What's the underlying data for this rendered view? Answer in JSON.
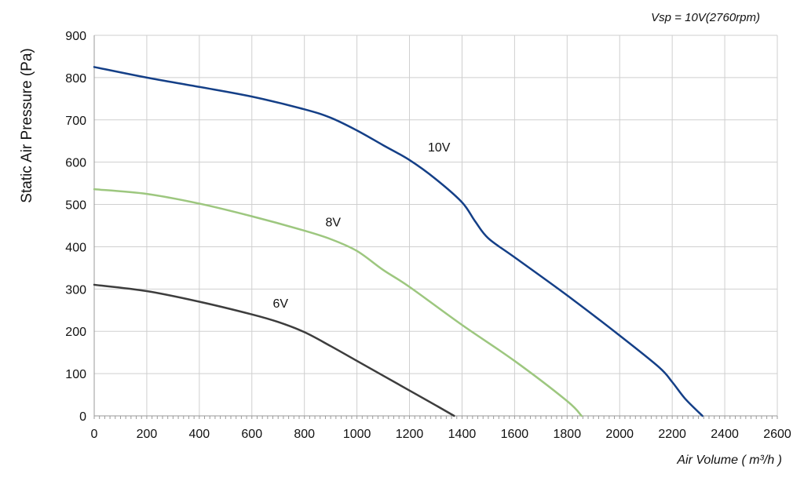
{
  "chart_data": {
    "type": "line",
    "title": "",
    "annotation": "Vsp = 10V(2760rpm)",
    "xlabel": "Air Volume ( m³/h )",
    "ylabel": "Static Air Pressure  (Pa)",
    "xlim": [
      0,
      2600
    ],
    "ylim": [
      0,
      900
    ],
    "xticks": [
      0,
      200,
      400,
      600,
      800,
      1000,
      1200,
      1400,
      1600,
      1800,
      2000,
      2200,
      2400,
      2600
    ],
    "yticks": [
      0,
      100,
      200,
      300,
      400,
      500,
      600,
      700,
      800,
      900
    ],
    "grid": true,
    "legend": "none",
    "series": [
      {
        "name": "10V",
        "color": "#143f87",
        "x": [
          0,
          200,
          400,
          600,
          800,
          900,
          1000,
          1100,
          1200,
          1300,
          1400,
          1450,
          1500,
          1600,
          1800,
          2000,
          2150,
          2200,
          2250,
          2315
        ],
        "y": [
          825,
          800,
          778,
          755,
          725,
          705,
          675,
          640,
          605,
          560,
          505,
          460,
          420,
          375,
          285,
          190,
          115,
          80,
          40,
          0
        ],
        "label_pos": {
          "x": 1270,
          "y": 625
        }
      },
      {
        "name": "8V",
        "color": "#9dc77f",
        "x": [
          0,
          200,
          400,
          600,
          800,
          900,
          1000,
          1100,
          1200,
          1400,
          1600,
          1800,
          1855
        ],
        "y": [
          536,
          525,
          502,
          472,
          438,
          418,
          390,
          345,
          305,
          215,
          130,
          35,
          0
        ],
        "label_pos": {
          "x": 880,
          "y": 448
        }
      },
      {
        "name": "6V",
        "color": "#3d3d3d",
        "x": [
          0,
          200,
          400,
          600,
          700,
          800,
          900,
          1000,
          1100,
          1200,
          1300,
          1370
        ],
        "y": [
          310,
          295,
          270,
          240,
          222,
          198,
          165,
          130,
          95,
          60,
          25,
          0
        ],
        "label_pos": {
          "x": 680,
          "y": 256
        }
      }
    ]
  }
}
